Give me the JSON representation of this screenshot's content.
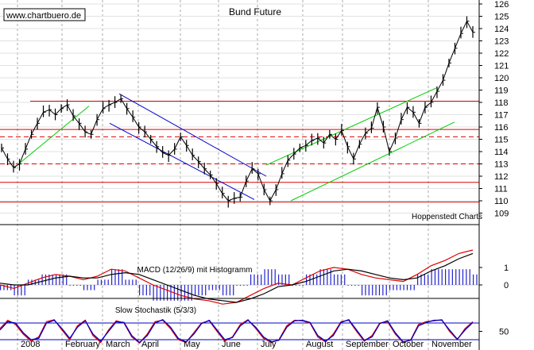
{
  "watermark": "www.chartbuero.de",
  "credit": "Hoppenstedt Charts",
  "colors": {
    "price": "#000000",
    "red": "#e00000",
    "blue": "#0000c8",
    "green": "#00cc00",
    "grid": "#aaaaaa",
    "hist": "#2222cc"
  },
  "chart_data": [
    {
      "type": "line",
      "title": "Bund Future",
      "x_labels": [
        "2008",
        "February",
        "March",
        "April",
        "May",
        "June",
        "July",
        "August",
        "September",
        "October",
        "November"
      ],
      "y_ticks": [
        109,
        110,
        111,
        112,
        113,
        114,
        115,
        116,
        117,
        118,
        119,
        120,
        121,
        122,
        123,
        124,
        125,
        126
      ],
      "ylim": [
        109,
        126
      ],
      "grid": true,
      "series": [
        {
          "values": [
            114.3,
            113.4,
            112.7,
            113.0,
            114.2,
            115.4,
            116.3,
            117.2,
            117.4,
            117.0,
            117.5,
            117.8,
            116.9,
            116.3,
            115.6,
            115.4,
            116.6,
            117.5,
            117.8,
            118.0,
            118.3,
            117.5,
            116.8,
            116.0,
            115.6,
            115.0,
            114.4,
            113.9,
            113.7,
            114.2,
            115.2,
            114.5,
            113.7,
            113.2,
            112.6,
            112.1,
            111.4,
            110.6,
            110.0,
            110.2,
            110.3,
            111.6,
            112.6,
            112.2,
            110.9,
            110.0,
            110.9,
            112.2,
            113.3,
            113.8,
            114.3,
            114.5,
            114.9,
            115.1,
            114.7,
            115.4,
            115.0,
            115.7,
            114.4,
            113.4,
            114.6,
            115.5,
            115.9,
            117.6,
            116.0,
            114.0,
            115.1,
            116.6,
            117.6,
            117.2,
            116.3,
            117.6,
            118.0,
            118.9,
            119.8,
            121.2,
            122.4,
            123.6,
            124.6,
            123.7
          ]
        }
      ],
      "horizontal_lines": [
        {
          "value": 118.1,
          "style": "solid"
        },
        {
          "value": 115.8,
          "style": "solid"
        },
        {
          "value": 115.2,
          "style": "dashed"
        },
        {
          "value": 113.0,
          "style": "dashed"
        },
        {
          "value": 111.5,
          "style": "solid"
        },
        {
          "value": 109.9,
          "style": "solid"
        }
      ],
      "trend_channels": [
        {
          "color": "blue",
          "lines": [
            [
              [
                150,
                118.7
              ],
              [
                335,
                112.0
              ]
            ],
            [
              [
                138,
                116.3
              ],
              [
                320,
                110.1
              ]
            ]
          ]
        },
        {
          "color": "green",
          "lines": [
            [
              [
                18,
                112.7
              ],
              [
                112,
                117.7
              ]
            ],
            [
              [
                335,
                112.9
              ],
              [
                550,
                119.2
              ]
            ],
            [
              [
                366,
                110.0
              ],
              [
                572,
                116.4
              ]
            ]
          ]
        }
      ]
    },
    {
      "type": "line",
      "title": "MACD (12/26/9) mit Histogramm",
      "y_ticks": [
        1,
        0
      ],
      "ylim": [
        -1.5,
        2
      ],
      "series": [
        {
          "color": "red",
          "values": [
            0.0,
            -0.2,
            0.1,
            0.4,
            0.6,
            0.5,
            0.3,
            0.5,
            0.9,
            0.8,
            0.4,
            0.0,
            -0.3,
            -0.6,
            -0.8,
            -0.9,
            -1.1,
            -1.0,
            -0.6,
            -0.2,
            0.1,
            0.0,
            0.4,
            0.8,
            1.0,
            0.9,
            0.6,
            0.4,
            0.3,
            0.2,
            0.6,
            1.1,
            1.4,
            1.8,
            2.0
          ]
        },
        {
          "color": "black",
          "values": [
            0.1,
            0.0,
            0.0,
            0.2,
            0.4,
            0.5,
            0.4,
            0.4,
            0.6,
            0.7,
            0.6,
            0.3,
            0.0,
            -0.3,
            -0.6,
            -0.8,
            -0.9,
            -1.0,
            -0.8,
            -0.5,
            -0.1,
            0.0,
            0.2,
            0.5,
            0.8,
            0.9,
            0.8,
            0.6,
            0.4,
            0.3,
            0.4,
            0.8,
            1.1,
            1.5,
            1.8
          ]
        }
      ]
    },
    {
      "type": "line",
      "title": "Slow Stochastik (5/3/3)",
      "y_ticks": [
        50
      ],
      "ylim": [
        0,
        100
      ],
      "reference_levels": [
        80,
        20
      ],
      "series": [
        {
          "color": "red",
          "values": [
            60,
            90,
            75,
            40,
            15,
            30,
            85,
            92,
            55,
            20,
            70,
            90,
            35,
            10,
            55,
            88,
            80,
            30,
            8,
            40,
            85,
            90,
            60,
            20,
            10,
            45,
            80,
            88,
            50,
            15,
            30,
            75,
            92,
            60,
            25,
            10,
            20,
            70,
            90,
            88,
            80,
            30,
            12,
            40,
            85,
            90,
            50,
            15,
            35,
            80,
            85,
            40,
            10,
            20,
            75,
            85,
            88,
            92,
            50,
            20,
            60,
            85
          ]
        },
        {
          "color": "blue",
          "values": [
            55,
            85,
            80,
            45,
            20,
            25,
            80,
            90,
            60,
            25,
            65,
            88,
            40,
            15,
            50,
            85,
            82,
            35,
            10,
            35,
            80,
            92,
            65,
            25,
            12,
            40,
            78,
            90,
            55,
            20,
            28,
            70,
            90,
            65,
            30,
            12,
            18,
            65,
            88,
            90,
            82,
            35,
            15,
            35,
            82,
            92,
            55,
            18,
            30,
            78,
            88,
            45,
            12,
            18,
            70,
            82,
            90,
            90,
            55,
            22,
            55,
            82
          ]
        }
      ]
    }
  ]
}
